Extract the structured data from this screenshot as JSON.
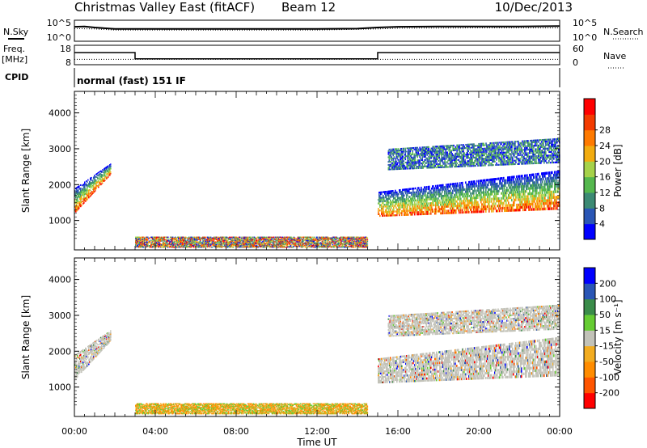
{
  "header": {
    "station": "Christmas Valley East (fitACF)",
    "beam": "Beam 12",
    "date": "10/Dec/2013"
  },
  "status_panels": {
    "nsky_label": "N.Sky",
    "nsearch_label": "N.Search",
    "freq_label": "Freq.",
    "freq_unit": "[MHz]",
    "nave_label": "Nave",
    "cpid_label": "CPID",
    "cpid_value": "normal (fast) 151 IF",
    "noise_ticks": [
      "10^5",
      "10^0"
    ],
    "freq_ticks": [
      "18",
      "8"
    ],
    "nave_ticks": [
      "60",
      "0"
    ]
  },
  "colors": {
    "power": [
      "#0000ff",
      "#2a56b5",
      "#3c8a74",
      "#55b84e",
      "#a6d24a",
      "#f2ac10",
      "#ff7a00",
      "#f33b00",
      "#ff0000"
    ],
    "velocity": [
      "#ff0000",
      "#ff5500",
      "#ff8c00",
      "#f2ac20",
      "#c2c2b8",
      "#66cc33",
      "#3a8c4a",
      "#2a56b5",
      "#0000ff"
    ]
  },
  "chart_data": [
    {
      "type": "line",
      "name": "noise-panel",
      "x_range": [
        0,
        24
      ],
      "series": [
        {
          "name": "N.Sky",
          "x": [
            0,
            0.5,
            1,
            2,
            4,
            6,
            8,
            10,
            12,
            14,
            15,
            16,
            18,
            20,
            22,
            24
          ],
          "values": [
            3.6,
            3.7,
            3.4,
            3.0,
            3.0,
            3.0,
            3.0,
            3.0,
            3.0,
            3.1,
            3.4,
            3.6,
            3.7,
            3.7,
            3.7,
            3.8
          ]
        },
        {
          "name": "N.Search",
          "x": [
            0,
            1,
            2,
            4,
            8,
            12,
            15,
            16,
            20,
            24
          ],
          "values": [
            3.1,
            3.0,
            2.7,
            2.7,
            2.7,
            2.7,
            3.0,
            3.2,
            3.3,
            3.3
          ]
        }
      ],
      "ylim": [
        0,
        5
      ]
    },
    {
      "type": "line",
      "name": "freq-nave-panel",
      "x_range": [
        0,
        24
      ],
      "series": [
        {
          "name": "Freq.",
          "x": [
            0,
            3.0,
            3.0,
            15.0,
            15.0,
            24
          ],
          "values": [
            14.5,
            14.5,
            10.6,
            10.6,
            14.5,
            14.5
          ]
        },
        {
          "name": "Nave",
          "x": [
            0,
            3,
            6,
            9,
            12,
            15,
            18,
            21,
            24
          ],
          "values": [
            20,
            20,
            20,
            20,
            20,
            20,
            20,
            20,
            20
          ]
        }
      ],
      "ylim": [
        8,
        18
      ]
    },
    {
      "type": "heatmap",
      "name": "power-panel",
      "ylabel": "Slant Range [km]",
      "colorbar_label": "Power [dB]",
      "colorbar_ticks": [
        4,
        8,
        12,
        16,
        20,
        24,
        28
      ],
      "x_ticks": [
        "00:00",
        "04:00",
        "08:00",
        "12:00",
        "16:00",
        "20:00",
        "00:00"
      ],
      "y_ticks": [
        1000,
        2000,
        3000,
        4000
      ],
      "xlim": [
        0,
        24
      ],
      "ylim": [
        180,
        4600
      ],
      "scatter_regions": [
        {
          "t": [
            0.0,
            1.8
          ],
          "range_start": [
            1200,
            2300
          ],
          "range_end": [
            1900,
            2600
          ],
          "level": "high"
        },
        {
          "t": [
            3.0,
            14.5
          ],
          "range_start": [
            250,
            250
          ],
          "range_end": [
            550,
            550
          ],
          "level": "mid"
        },
        {
          "t": [
            15.0,
            24.0
          ],
          "range_start": [
            1100,
            1300
          ],
          "range_end": [
            1800,
            2400
          ],
          "level": "high"
        },
        {
          "t": [
            15.5,
            24.0
          ],
          "range_start": [
            2400,
            2600
          ],
          "range_end": [
            3000,
            3300
          ],
          "level": "low"
        }
      ]
    },
    {
      "type": "heatmap",
      "name": "velocity-panel",
      "xlabel": "Time UT",
      "ylabel": "Slant Range [km]",
      "colorbar_label": "Velocity [m s⁻¹]",
      "colorbar_ticks": [
        -200,
        -100,
        -50,
        -15,
        15,
        50,
        100,
        200
      ],
      "x_ticks": [
        "00:00",
        "04:00",
        "08:00",
        "12:00",
        "16:00",
        "20:00",
        "00:00"
      ],
      "y_ticks": [
        1000,
        2000,
        3000,
        4000
      ],
      "xlim": [
        0,
        24
      ],
      "ylim": [
        180,
        4600
      ]
    }
  ]
}
